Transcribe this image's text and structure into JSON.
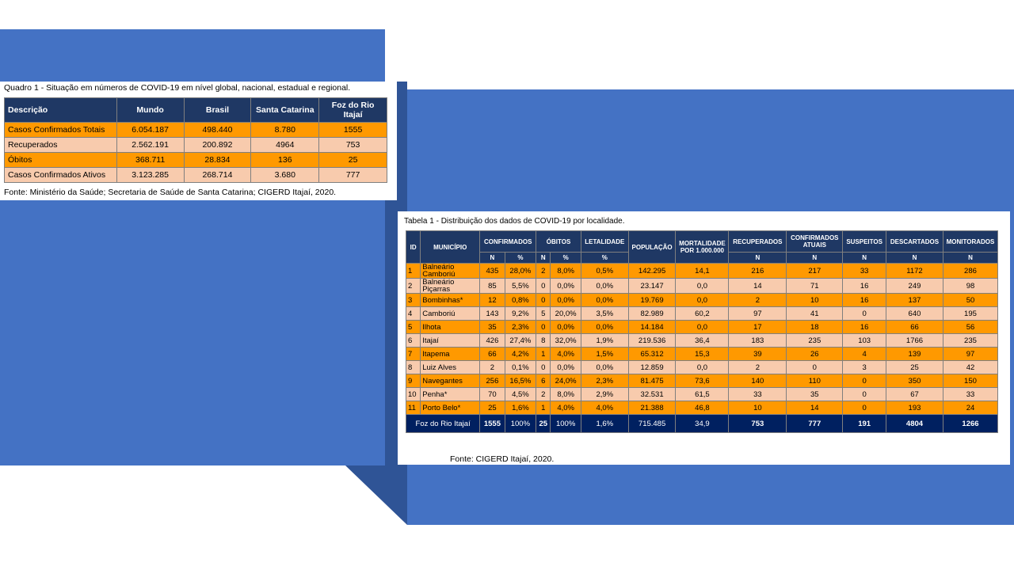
{
  "quadro1": {
    "caption_prefix": "Quadro 1 -",
    "caption_text": " Situação em números de COVID-19 em nível global, nacional, estadual e regional.",
    "headers": [
      "Descrição",
      "Mundo",
      "Brasil",
      "Santa Catarina",
      "Foz do Rio Itajaí"
    ],
    "rows": [
      [
        "Casos Confirmados Totais",
        "6.054.187",
        "498.440",
        "8.780",
        "1555"
      ],
      [
        "Recuperados",
        "2.562.191",
        "200.892",
        "4964",
        "753"
      ],
      [
        "Óbitos",
        "368.711",
        "28.834",
        "136",
        "25"
      ],
      [
        "Casos Confirmados Ativos",
        "3.123.285",
        "268.714",
        "3.680",
        "777"
      ]
    ],
    "source": "Fonte: Ministério da Saúde; Secretaria de Saúde de Santa Catarina; CIGERD Itajaí, 2020."
  },
  "tabela1": {
    "caption": "Tabela 1 - Distribuição dos dados de COVID-19 por localidade.",
    "headers": {
      "id": "ID",
      "municipio": "MUNICÍPIO",
      "confirmados": "CONFIRMADOS",
      "obitos": "ÓBITOS",
      "letalidade": "LETALIDADE",
      "populacao": "POPULAÇÃO",
      "mortalidade": "MORTALIDADE POR 1.000.000",
      "recuperados": "RECUPERADOS",
      "confirmados_atuais": "CONFIRMADOS ATUAIS",
      "suspeitos": "SUSPEITOS",
      "descartados": "DESCARTADOS",
      "monitorados": "MONITORADOS",
      "n": "N",
      "pct": "%"
    },
    "rows": [
      [
        "1",
        "Balneário Camboriú",
        "435",
        "28,0%",
        "2",
        "8,0%",
        "0,5%",
        "142.295",
        "14,1",
        "216",
        "217",
        "33",
        "1172",
        "286"
      ],
      [
        "2",
        "Balneário Piçarras",
        "85",
        "5,5%",
        "0",
        "0,0%",
        "0,0%",
        "23.147",
        "0,0",
        "14",
        "71",
        "16",
        "249",
        "98"
      ],
      [
        "3",
        "Bombinhas*",
        "12",
        "0,8%",
        "0",
        "0,0%",
        "0,0%",
        "19.769",
        "0,0",
        "2",
        "10",
        "16",
        "137",
        "50"
      ],
      [
        "4",
        "Camboriú",
        "143",
        "9,2%",
        "5",
        "20,0%",
        "3,5%",
        "82.989",
        "60,2",
        "97",
        "41",
        "0",
        "640",
        "195"
      ],
      [
        "5",
        "Ilhota",
        "35",
        "2,3%",
        "0",
        "0,0%",
        "0,0%",
        "14.184",
        "0,0",
        "17",
        "18",
        "16",
        "66",
        "56"
      ],
      [
        "6",
        "Itajaí",
        "426",
        "27,4%",
        "8",
        "32,0%",
        "1,9%",
        "219.536",
        "36,4",
        "183",
        "235",
        "103",
        "1766",
        "235"
      ],
      [
        "7",
        "Itapema",
        "66",
        "4,2%",
        "1",
        "4,0%",
        "1,5%",
        "65.312",
        "15,3",
        "39",
        "26",
        "4",
        "139",
        "97"
      ],
      [
        "8",
        "Luiz Alves",
        "2",
        "0,1%",
        "0",
        "0,0%",
        "0,0%",
        "12.859",
        "0,0",
        "2",
        "0",
        "3",
        "25",
        "42"
      ],
      [
        "9",
        "Navegantes",
        "256",
        "16,5%",
        "6",
        "24,0%",
        "2,3%",
        "81.475",
        "73,6",
        "140",
        "110",
        "0",
        "350",
        "150"
      ],
      [
        "10",
        "Penha*",
        "70",
        "4,5%",
        "2",
        "8,0%",
        "2,9%",
        "32.531",
        "61,5",
        "33",
        "35",
        "0",
        "67",
        "33"
      ],
      [
        "11",
        "Porto Belo*",
        "25",
        "1,6%",
        "1",
        "4,0%",
        "4,0%",
        "21.388",
        "46,8",
        "10",
        "14",
        "0",
        "193",
        "24"
      ]
    ],
    "total": [
      "Foz do Rio Itajaí",
      "1555",
      "100%",
      "25",
      "100%",
      "1,6%",
      "715.485",
      "34,9",
      "753",
      "777",
      "191",
      "4804",
      "1266"
    ],
    "source": "Fonte: CIGERD Itajaí, 2020."
  }
}
